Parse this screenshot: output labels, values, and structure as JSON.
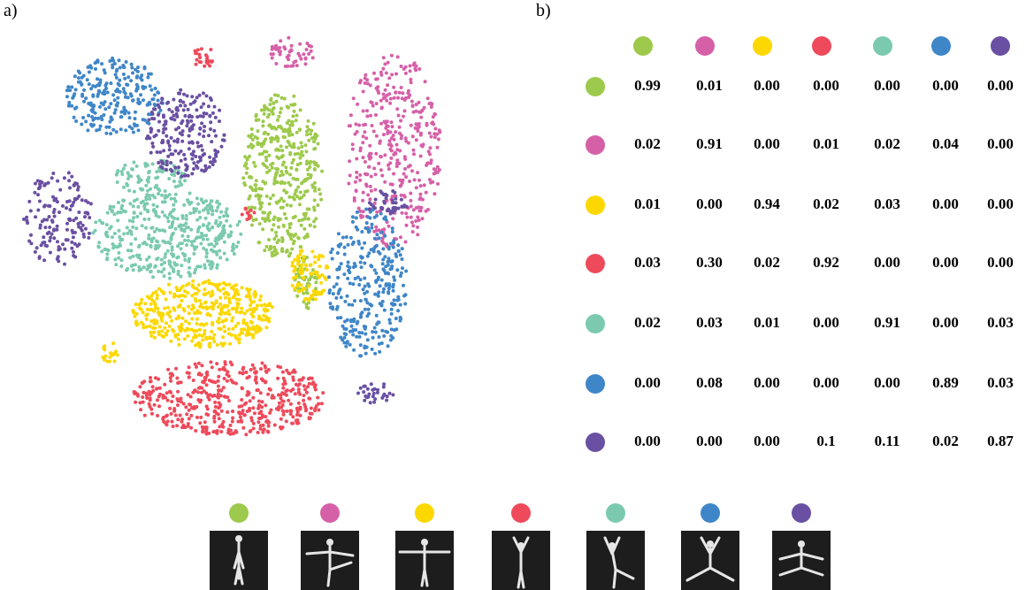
{
  "panels": {
    "a": "a)",
    "b": "b)"
  },
  "classes": [
    {
      "color": "#9dca4c"
    },
    {
      "color": "#d660a8"
    },
    {
      "color": "#fcd800"
    },
    {
      "color": "#ee4a5b"
    },
    {
      "color": "#7bcab0"
    },
    {
      "color": "#3f86c8"
    },
    {
      "color": "#6a50a2"
    }
  ],
  "matrix": {
    "rows": [
      [
        "0.99",
        "0.01",
        "0.00",
        "0.00",
        "0.00",
        "0.00",
        "0.00"
      ],
      [
        "0.02",
        "0.91",
        "0.00",
        "0.01",
        "0.02",
        "0.04",
        "0.00"
      ],
      [
        "0.01",
        "0.00",
        "0.94",
        "0.02",
        "0.03",
        "0.00",
        "0.00"
      ],
      [
        "0.03",
        "0.30",
        "0.02",
        "0.92",
        "0.00",
        "0.00",
        "0.00"
      ],
      [
        "0.02",
        "0.03",
        "0.01",
        "0.00",
        "0.91",
        "0.00",
        "0.03"
      ],
      [
        "0.00",
        "0.08",
        "0.00",
        "0.00",
        "0.00",
        "0.89",
        "0.03"
      ],
      [
        "0.00",
        "0.00",
        "0.00",
        "0.1",
        "0.11",
        "0.02",
        "0.87"
      ]
    ]
  }
}
